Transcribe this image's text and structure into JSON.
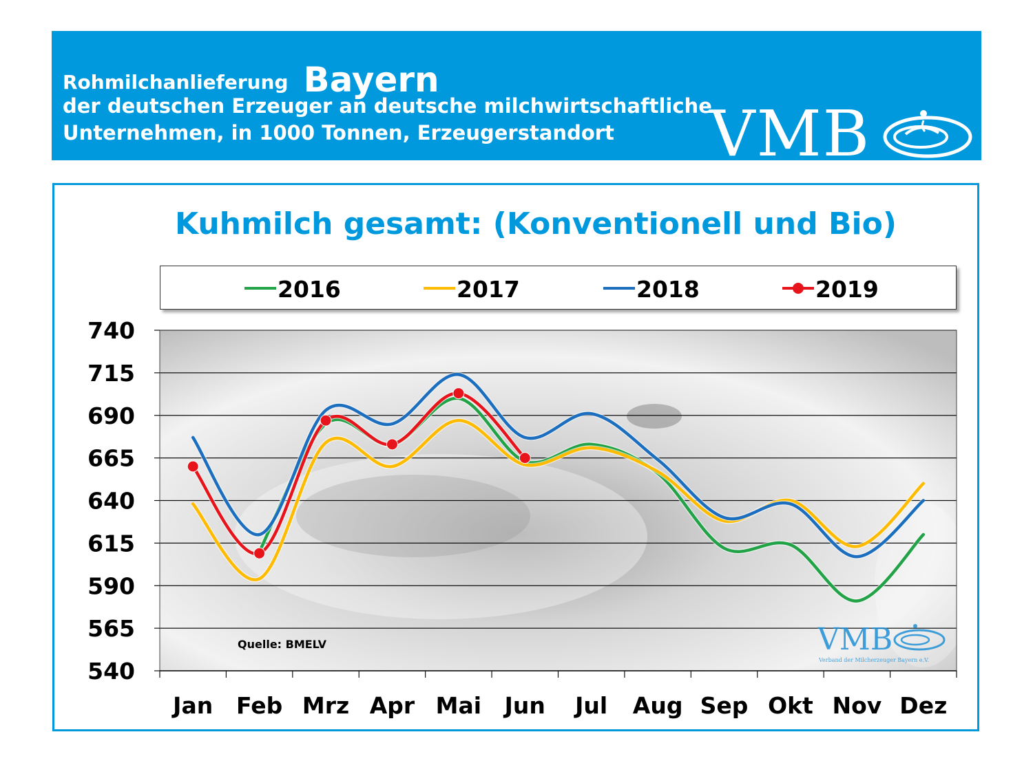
{
  "header": {
    "line1_prefix": "Rohmilchanlieferung",
    "line1_region": "Bayern",
    "line2": "der deutschen Erzeuger an deutsche milchwirtschaftliche",
    "line3": "Unternehmen, in 1000 Tonnen, Erzeugerstandort",
    "logo": "VMB"
  },
  "colors": {
    "header_bg": "#0099dd",
    "s2016": "#22a347",
    "s2017": "#ffbb00",
    "s2018": "#1c6ebe",
    "s2019": "#e8141b"
  },
  "chart_data": {
    "type": "line",
    "title": "Kuhmilch gesamt: (Konventionell und Bio)",
    "xlabel": "",
    "ylabel": "",
    "categories": [
      "Jan",
      "Feb",
      "Mrz",
      "Apr",
      "Mai",
      "Jun",
      "Jul",
      "Aug",
      "Sep",
      "Okt",
      "Nov",
      "Dez"
    ],
    "ylim": [
      540,
      740
    ],
    "yticks": [
      740,
      715,
      690,
      665,
      640,
      615,
      590,
      565,
      540
    ],
    "grid": true,
    "legend_position": "top",
    "series": [
      {
        "name": "2016",
        "color": "#22a347",
        "markers": false,
        "values": [
          null,
          610,
          685,
          673,
          700,
          663,
          673,
          656,
          612,
          614,
          581,
          620
        ]
      },
      {
        "name": "2017",
        "color": "#ffbb00",
        "markers": false,
        "values": [
          638,
          594,
          674,
          660,
          687,
          661,
          671,
          657,
          628,
          640,
          613,
          650
        ]
      },
      {
        "name": "2018",
        "color": "#1c6ebe",
        "markers": false,
        "values": [
          677,
          620,
          693,
          685,
          714,
          677,
          691,
          664,
          630,
          638,
          607,
          640
        ]
      },
      {
        "name": "2019",
        "color": "#e8141b",
        "markers": true,
        "values": [
          660,
          609,
          687,
          673,
          703,
          665,
          null,
          null,
          null,
          null,
          null,
          null
        ]
      }
    ],
    "annotations": [
      "Quelle:  BMELV"
    ]
  },
  "watermark": {
    "logo": "VMB",
    "subtitle": "Verband der Milcherzeuger Bayern e.V."
  }
}
